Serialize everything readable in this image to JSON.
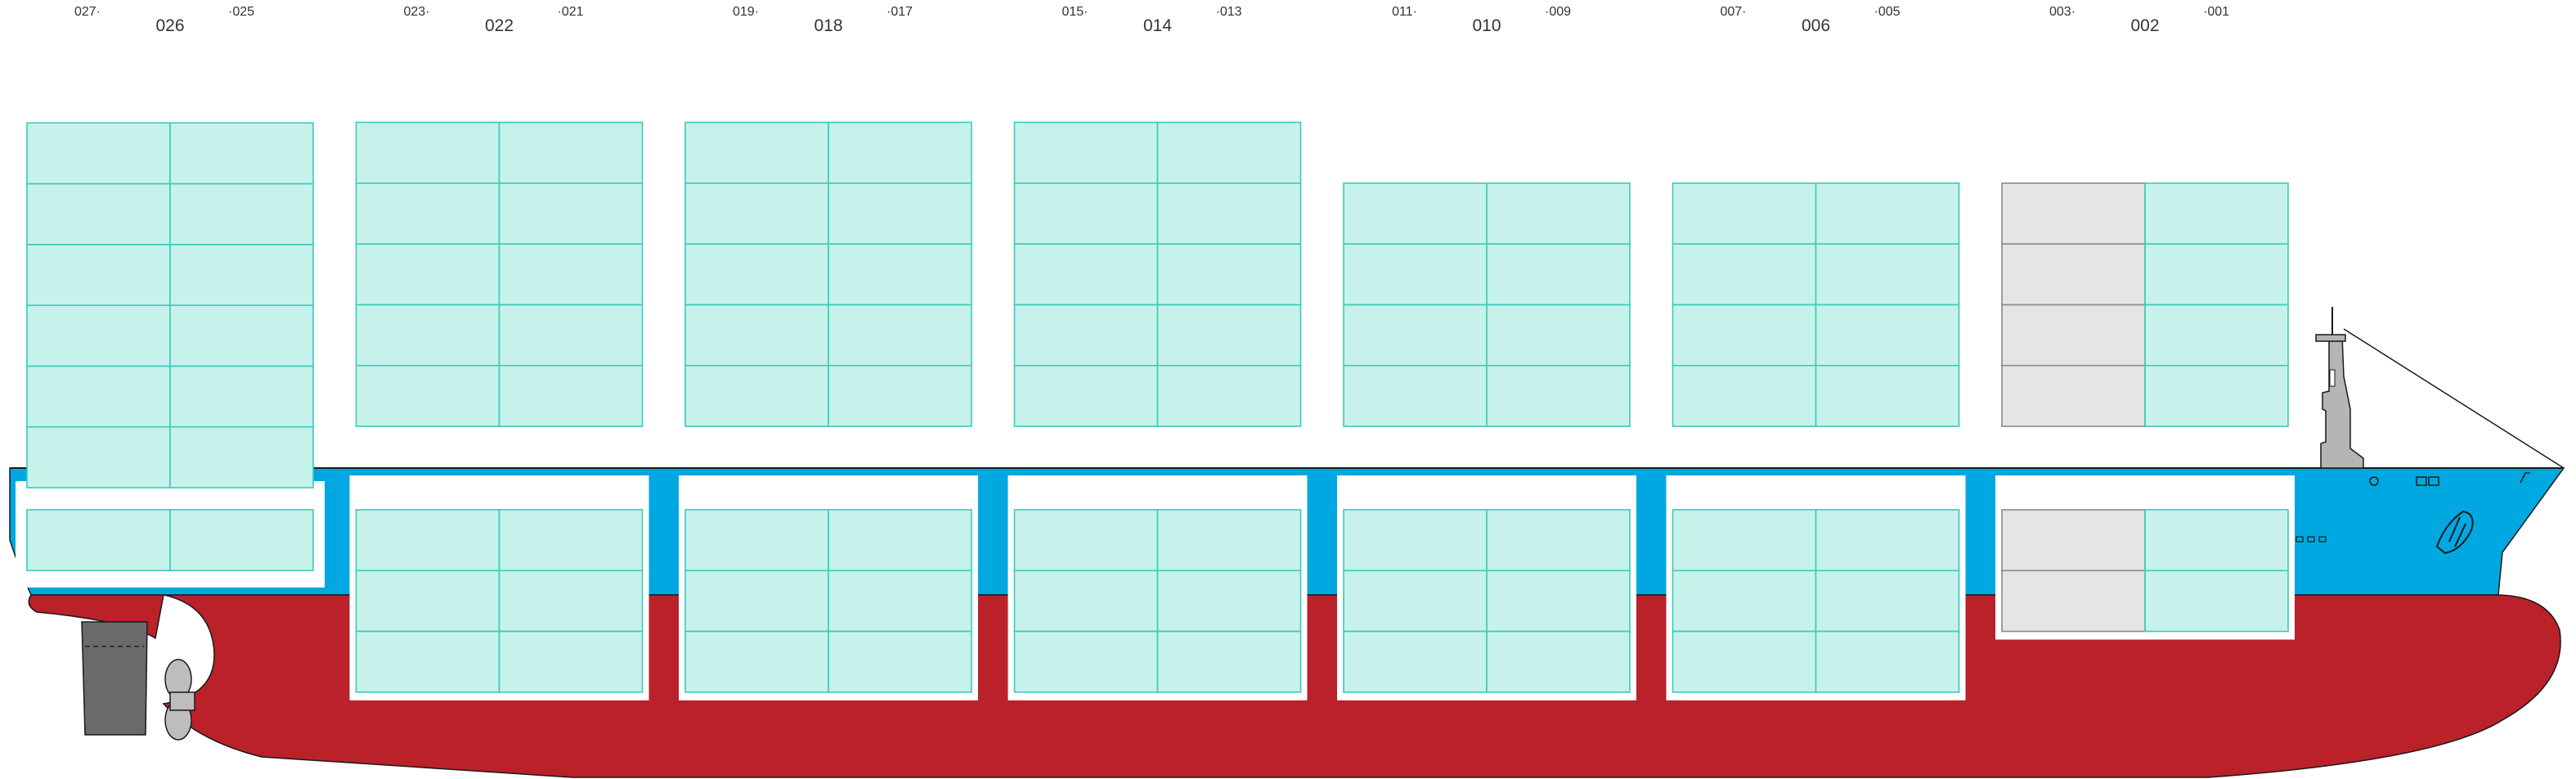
{
  "colors": {
    "hull_red": "#BA2129",
    "hull_blue": "#00A8E1",
    "hull_dark_blue": "#008FCC",
    "cell_empty": "#C7F2EC",
    "cell_empty_stroke": "#3CC9BA",
    "cell_grey": "#E5E5E7",
    "cell_grey_stroke": "#8A8A8A",
    "hatch_white": "#FFFFFF",
    "superstructure": "#B5B5B5",
    "rudder": "#6A6A6A",
    "propeller": "#BDBDBD",
    "outline": "#1A1A1A"
  },
  "bays": [
    {
      "bay": "026",
      "fwd_label": "027",
      "aft_label": "025",
      "deck_tiers": 6,
      "hold_tiers": 1,
      "grey_columns": []
    },
    {
      "bay": "022",
      "fwd_label": "023",
      "aft_label": "021",
      "deck_tiers": 5,
      "hold_tiers": 3,
      "grey_columns": []
    },
    {
      "bay": "018",
      "fwd_label": "019",
      "aft_label": "017",
      "deck_tiers": 5,
      "hold_tiers": 3,
      "grey_columns": []
    },
    {
      "bay": "014",
      "fwd_label": "015",
      "aft_label": "013",
      "deck_tiers": 5,
      "hold_tiers": 3,
      "grey_columns": []
    },
    {
      "bay": "010",
      "fwd_label": "011",
      "aft_label": "009",
      "deck_tiers": 4,
      "hold_tiers": 3,
      "grey_columns": []
    },
    {
      "bay": "006",
      "fwd_label": "007",
      "aft_label": "005",
      "deck_tiers": 4,
      "hold_tiers": 3,
      "grey_columns": []
    },
    {
      "bay": "002",
      "fwd_label": "003",
      "aft_label": "001",
      "deck_tiers": 4,
      "hold_tiers": 2,
      "grey_columns": [
        0
      ]
    }
  ]
}
